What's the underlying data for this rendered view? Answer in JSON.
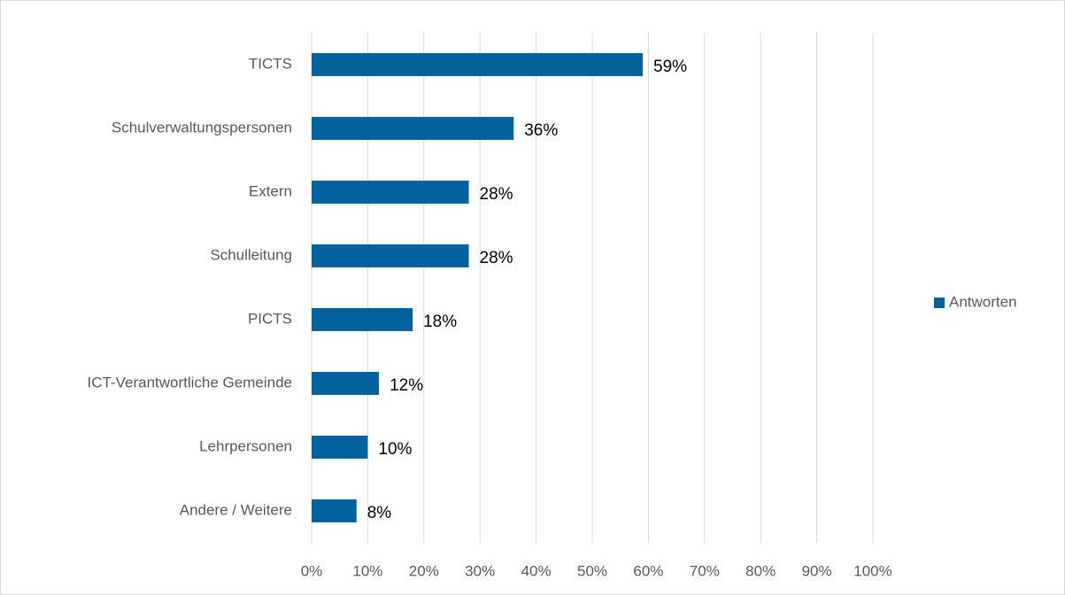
{
  "chart_data": {
    "type": "hbar",
    "categories": [
      "TICTS",
      "Schulverwaltungspersonen",
      "Extern",
      "Schulleitung",
      "PICTS",
      "ICT-Verantwortliche Gemeinde",
      "Lehrpersonen",
      "Andere / Weitere"
    ],
    "series": [
      {
        "name": "Antworten",
        "color": "#0063a0",
        "values": [
          59,
          36,
          28,
          28,
          18,
          12,
          10,
          8
        ],
        "value_labels": [
          "59%",
          "36%",
          "28%",
          "28%",
          "18%",
          "12%",
          "10%",
          "8%"
        ]
      }
    ],
    "xlim": [
      0,
      100
    ],
    "xticks": [
      {
        "value": 0,
        "label": "0%"
      },
      {
        "value": 10,
        "label": "10%"
      },
      {
        "value": 20,
        "label": "20%"
      },
      {
        "value": 30,
        "label": "30%"
      },
      {
        "value": 40,
        "label": "40%"
      },
      {
        "value": 50,
        "label": "50%"
      },
      {
        "value": 60,
        "label": "60%"
      },
      {
        "value": 70,
        "label": "70%"
      },
      {
        "value": 80,
        "label": "80%"
      },
      {
        "value": 90,
        "label": "90%"
      },
      {
        "value": 100,
        "label": "100%"
      }
    ],
    "grid": true,
    "legend": "right"
  }
}
